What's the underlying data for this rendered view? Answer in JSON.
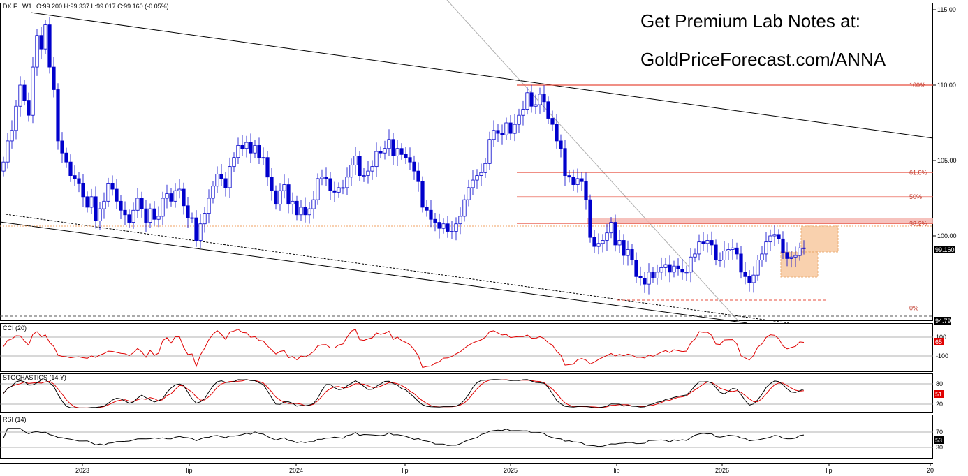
{
  "header": {
    "symbol": "DX.F",
    "timeframe": "W1",
    "ohlc": "O:99.200 H:99.337 L:99.017 C:99.160 (-0.05%)"
  },
  "promo": {
    "line1": "Get Premium Lab Notes at:",
    "line2": "GoldPriceForecast.com/ANNA"
  },
  "panels": {
    "cci_label": "CCI (20)",
    "stoch_label": "STOCHASTICS (14,Y)",
    "rsi_label": "RSI (14)"
  },
  "colors": {
    "bull_candle": "#ffffff",
    "bear_candle": "#0000cc",
    "candle_outline": "#0000cc",
    "fib_line": "#e74c3c",
    "fib_text": "#c0392b",
    "resistance_zone": "#f5b7b1",
    "target_box": "#f8c9a0",
    "cci_line": "#e00000",
    "stoch_k": "#000000",
    "stoch_d": "#e00000",
    "rsi_line": "#000000",
    "price_badge": "#000000",
    "indicator_badge": "#e00000"
  },
  "chart_data": [
    {
      "type": "candlestick",
      "title": "DX.F W1",
      "ylim": [
        93,
        115.5
      ],
      "y_ticks": [
        "115.00",
        "110.00",
        "105.00",
        "100.00"
      ],
      "x_ticks": [
        "2023",
        "lip",
        "2024",
        "lip",
        "2025",
        "lip",
        "2026",
        "lip",
        "20"
      ],
      "last_price": "99.160",
      "low_marker": "94.79",
      "fibonacci": [
        {
          "label": "100%",
          "value": 110.0
        },
        {
          "label": "61.8%",
          "value": 104.2
        },
        {
          "label": "50%",
          "value": 102.6
        },
        {
          "label": "38.2%",
          "value": 100.8
        },
        {
          "label": "0%",
          "value": 95.2
        }
      ],
      "close": [
        104.9,
        106.3,
        107.0,
        108.6,
        110.0,
        109.0,
        108.0,
        111.2,
        113.3,
        112.4,
        114.0,
        111.2,
        109.7,
        106.3,
        105.5,
        104.9,
        104.0,
        103.8,
        103.5,
        102.6,
        101.9,
        102.6,
        101.0,
        101.8,
        102.3,
        103.5,
        103.1,
        102.3,
        101.7,
        101.4,
        100.9,
        101.7,
        102.5,
        101.8,
        100.9,
        101.8,
        101.1,
        101.3,
        102.5,
        102.8,
        102.3,
        103.0,
        103.1,
        102.0,
        101.2,
        101.2,
        99.7,
        100.8,
        101.5,
        102.5,
        103.3,
        104.1,
        103.8,
        103.2,
        104.6,
        105.2,
        106.0,
        105.8,
        106.2,
        105.5,
        106.0,
        105.2,
        105.2,
        103.9,
        103.0,
        102.1,
        103.0,
        103.4,
        102.1,
        102.3,
        101.4,
        101.9,
        101.4,
        101.8,
        102.4,
        103.8,
        103.9,
        103.8,
        103.0,
        102.9,
        103.2,
        103.2,
        103.9,
        104.7,
        105.3,
        104.0,
        104.0,
        104.3,
        104.6,
        105.6,
        105.5,
        105.8,
        106.4,
        105.3,
        105.8,
        105.4,
        105.2,
        104.9,
        104.3,
        103.6,
        101.9,
        101.7,
        101.1,
        100.9,
        100.5,
        100.8,
        100.3,
        100.3,
        100.8,
        101.3,
        102.4,
        103.2,
        103.7,
        104.0,
        104.2,
        104.8,
        106.4,
        107.0,
        106.8,
        106.7,
        107.5,
        106.8,
        107.4,
        108.0,
        108.4,
        109.5,
        108.6,
        108.7,
        109.4,
        108.9,
        107.8,
        107.4,
        106.3,
        105.8,
        104.0,
        103.9,
        103.4,
        103.8,
        103.6,
        102.4,
        99.9,
        99.3,
        99.5,
        99.7,
        100.2,
        100.9,
        99.4,
        99.7,
        98.7,
        99.1,
        98.4,
        97.3,
        97.2,
        96.8,
        97.6,
        97.2,
        97.6,
        97.9,
        98.1,
        97.6,
        98.0,
        97.8,
        97.6,
        97.6,
        98.6,
        98.8,
        99.6,
        99.5,
        99.7,
        99.4,
        98.4,
        98.4,
        99.0,
        99.1,
        99.2,
        98.8,
        97.6,
        97.3,
        96.9,
        97.4,
        98.4,
        98.8,
        99.6,
        100.0,
        100.1,
        99.8,
        98.9,
        98.5,
        98.6,
        98.7,
        99.2,
        99.2
      ]
    },
    {
      "type": "line",
      "title": "CCI (20)",
      "y_ticks": [
        "100",
        "-100"
      ],
      "current_value": "65",
      "ylim": [
        -250,
        250
      ]
    },
    {
      "type": "line",
      "title": "STOCHASTICS (14,Y)",
      "y_ticks": [
        "80",
        "20"
      ],
      "current_value": "51",
      "ylim": [
        0,
        100
      ]
    },
    {
      "type": "line",
      "title": "RSI (14)",
      "y_ticks": [
        "70",
        "30"
      ],
      "current_value": "53",
      "ylim": [
        0,
        100
      ]
    }
  ]
}
